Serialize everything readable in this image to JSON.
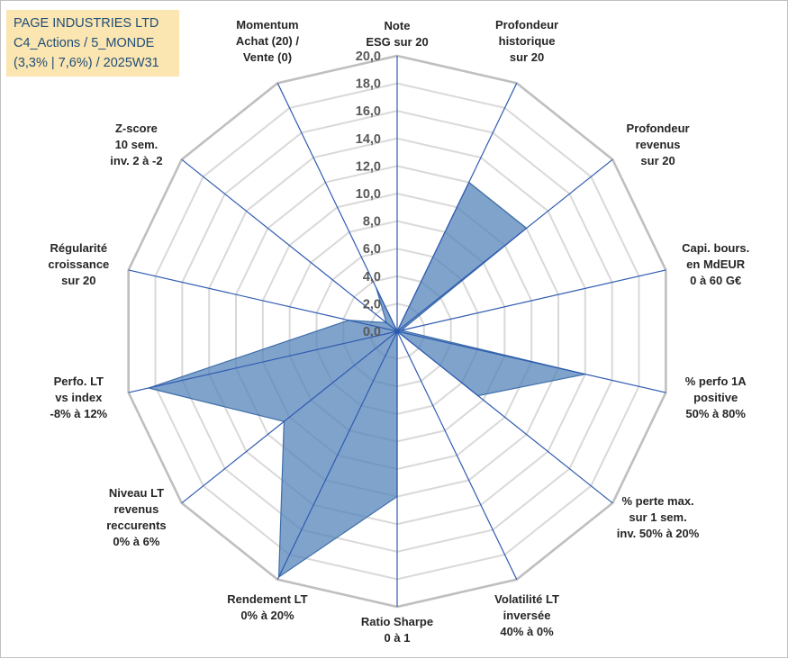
{
  "title_box": {
    "line1": "PAGE INDUSTRIES LTD",
    "line2": "C4_Actions / 5_MONDE",
    "line3": "(3,3% | 7,6%) / 2025W31"
  },
  "colors": {
    "fill": "#4f7fb8",
    "fill_opacity": 0.72,
    "series_line": "#3d6ea8",
    "spoke": "#2f5bb0",
    "grid": "#d9d9d9",
    "outer_ring": "#bfbfbf",
    "title_bg": "#fbe5b0",
    "title_text": "#1f4e79"
  },
  "chart_data": {
    "type": "radar",
    "r_range": [
      0,
      20
    ],
    "r_ticks": [
      "0,0",
      "2,0",
      "4,0",
      "6,0",
      "8,0",
      "10,0",
      "12,0",
      "14,0",
      "16,0",
      "18,0",
      "20,0"
    ],
    "grid": true,
    "axes": [
      [
        "Note",
        "ESG sur 20"
      ],
      [
        "Profondeur",
        "historique",
        "sur 20"
      ],
      [
        "Profondeur",
        "revenus",
        "sur 20"
      ],
      [
        "Capi. bours.",
        "en MdEUR",
        "0 à 60 G€"
      ],
      [
        "% perfo 1A",
        "positive",
        "50% à 80%"
      ],
      [
        "% perte max.",
        "sur 1 sem.",
        "inv. 50% à 20%"
      ],
      [
        "Volatilité LT",
        "inversée",
        "40% à 0%"
      ],
      [
        "Ratio Sharpe",
        "0 à 1"
      ],
      [
        "Rendement LT",
        "0% à 20%"
      ],
      [
        "Niveau LT",
        "revenus",
        "reccurents",
        "0% à 6%"
      ],
      [
        "Perfo. LT",
        "vs index",
        "-8% à 12%"
      ],
      [
        "Régularité",
        "croissance",
        "sur 20"
      ],
      [
        "Z-score",
        "10 sem.",
        "inv. 2 à -2"
      ],
      [
        "Momentum",
        "Achat (20) /",
        "Vente (0)"
      ]
    ],
    "values": [
      0.0,
      12.0,
      12.0,
      0.3,
      14.0,
      7.5,
      0.0,
      12.0,
      19.8,
      10.5,
      18.5,
      3.6,
      1.0,
      3.5
    ]
  }
}
